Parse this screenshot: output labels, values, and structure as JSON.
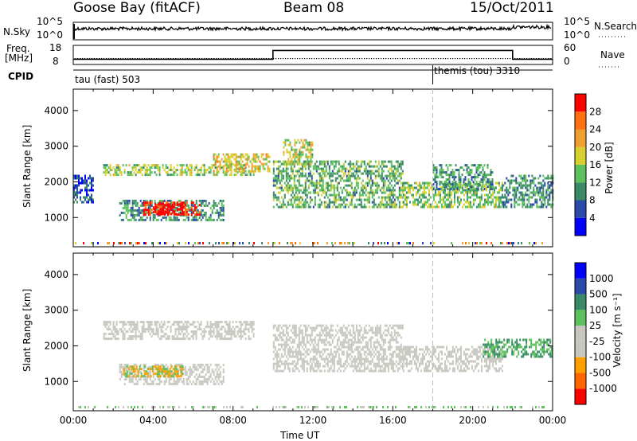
{
  "header": {
    "station": "Goose Bay (fitACF)",
    "beam": "Beam 08",
    "date": "15/Oct/2011"
  },
  "top_panels": {
    "nsky_label": "N.Sky",
    "nsky_ticks": [
      "10^5",
      "10^0"
    ],
    "nsearch_label": "N.Search",
    "nsearch_ticks": [
      "10^5",
      "10^0"
    ],
    "freq_label_line1": "Freq.",
    "freq_label_line2": "[MHz]",
    "freq_ticks": [
      "18",
      "8"
    ],
    "nave_label": "Nave",
    "nave_ticks": [
      "60",
      "0"
    ],
    "cpid_label": "CPID",
    "cpid_modes": [
      {
        "name": "tau (fast)",
        "id": "503"
      },
      {
        "name": "themis (tou)",
        "id": "3310"
      }
    ]
  },
  "colors": {
    "power_scale": [
      "#0000ff",
      "#2a4aa8",
      "#3a8a68",
      "#5cc05c",
      "#d8d030",
      "#f0a030",
      "#ff7010",
      "#ff0000"
    ],
    "velocity_scale": [
      "#ff0000",
      "#ff6600",
      "#ffa000",
      "#c8c8c0",
      "#c8c8c0",
      "#5cc05c",
      "#3a8a68",
      "#2a4aa8",
      "#0000ff"
    ],
    "ground_scatter": "#c8c8c0"
  },
  "chart_data": [
    {
      "type": "heatmap",
      "panel": "power",
      "ylabel": "Slant Range [km]",
      "xlabel": "",
      "xlim": [
        "00:00",
        "24:00"
      ],
      "ylim": [
        180,
        4600
      ],
      "yticks": [
        "1000",
        "2000",
        "3000",
        "4000"
      ],
      "colorbar_label": "Power [dB]",
      "colorbar_ticks": [
        "4",
        "8",
        "12",
        "16",
        "20",
        "24",
        "28"
      ],
      "colorbar_range": [
        0,
        30
      ],
      "regions": [
        {
          "t": [
            2.3,
            7.5
          ],
          "range": [
            950,
            1500
          ],
          "value": 10
        },
        {
          "t": [
            3.5,
            6.3
          ],
          "range": [
            1050,
            1450
          ],
          "value": 28
        },
        {
          "t": [
            4.0,
            5.5
          ],
          "range": [
            1100,
            1400
          ],
          "value": 30
        },
        {
          "t": [
            1.5,
            9.0
          ],
          "range": [
            2200,
            2500
          ],
          "value": 14
        },
        {
          "t": [
            7.0,
            9.8
          ],
          "range": [
            2300,
            2800
          ],
          "value": 18
        },
        {
          "t": [
            10.0,
            16.5
          ],
          "range": [
            1300,
            2600
          ],
          "value": 12
        },
        {
          "t": [
            10.5,
            12.0
          ],
          "range": [
            2500,
            3200
          ],
          "value": 16
        },
        {
          "t": [
            16.5,
            21.5
          ],
          "range": [
            1300,
            2000
          ],
          "value": 14
        },
        {
          "t": [
            18.0,
            21.0
          ],
          "range": [
            1800,
            2500
          ],
          "value": 10
        },
        {
          "t": [
            21.5,
            24.0
          ],
          "range": [
            1300,
            2200
          ],
          "value": 10
        },
        {
          "t": [
            0.0,
            1.0
          ],
          "range": [
            1400,
            2200
          ],
          "value": 6
        }
      ]
    },
    {
      "type": "heatmap",
      "panel": "velocity",
      "ylabel": "Slant Range [km]",
      "xlabel": "Time UT",
      "xlim": [
        "00:00",
        "24:00"
      ],
      "xticks": [
        "00:00",
        "04:00",
        "08:00",
        "12:00",
        "16:00",
        "20:00",
        "00:00"
      ],
      "ylim": [
        180,
        4600
      ],
      "yticks": [
        "1000",
        "2000",
        "3000",
        "4000"
      ],
      "colorbar_label": "Velocity [m s⁻¹]",
      "colorbar_ticks": [
        "1000",
        "500",
        "100",
        "25",
        "-25",
        "-100",
        "-500",
        "-1000"
      ],
      "regions": [
        {
          "t": [
            2.3,
            7.5
          ],
          "range": [
            950,
            1500
          ],
          "value": "ground"
        },
        {
          "t": [
            2.5,
            5.5
          ],
          "range": [
            1150,
            1450
          ],
          "value": "-200"
        },
        {
          "t": [
            1.5,
            9.0
          ],
          "range": [
            2200,
            2700
          ],
          "value": "ground"
        },
        {
          "t": [
            10.0,
            16.5
          ],
          "range": [
            1300,
            2600
          ],
          "value": "ground"
        },
        {
          "t": [
            16.5,
            21.5
          ],
          "range": [
            1300,
            2000
          ],
          "value": "ground"
        },
        {
          "t": [
            20.5,
            24.0
          ],
          "range": [
            1700,
            2200
          ],
          "value": "150"
        }
      ]
    },
    {
      "type": "line",
      "panel": "frequency",
      "x": [
        "00:00",
        "10:00",
        "10:00",
        "22:00",
        "22:00",
        "24:00"
      ],
      "values": [
        11,
        11,
        16,
        16,
        11,
        11
      ]
    }
  ],
  "cpid_switch_time": "18:00"
}
